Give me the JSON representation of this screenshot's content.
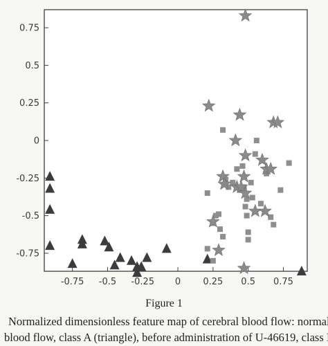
{
  "figure": {
    "title": "Figure 1",
    "caption_line1": "Normalized dimensionless feature map of cerebral blood flow: normal",
    "caption_line2": "blood flow, class A (triangle), before administration of U-46619, class I"
  },
  "chart_data": {
    "type": "scatter",
    "title": "",
    "xlabel": "",
    "ylabel": "",
    "xlim": [
      -0.95,
      0.92
    ],
    "ylim": [
      -0.87,
      0.87
    ],
    "x_ticks": [
      "-0.75",
      "-0.5",
      "-0.25",
      "0",
      "0.25",
      "0.5",
      "0.75"
    ],
    "x_tick_values": [
      -0.75,
      -0.5,
      -0.25,
      0,
      0.25,
      0.5,
      0.75
    ],
    "y_ticks": [
      "0.75",
      "0.5",
      "0.25",
      "0",
      "-0.25",
      "-0.5",
      "-0.75"
    ],
    "y_tick_values": [
      0.75,
      0.5,
      0.25,
      0,
      -0.25,
      -0.5,
      -0.75
    ],
    "grid": false,
    "legend": "none",
    "series": [
      {
        "marker": "triangle",
        "color": "#3c3c3c",
        "points": [
          [
            -0.91,
            -0.24
          ],
          [
            -0.91,
            -0.32
          ],
          [
            -0.91,
            -0.46
          ],
          [
            -0.91,
            -0.7
          ],
          [
            -0.75,
            -0.82
          ],
          [
            -0.68,
            -0.66
          ],
          [
            -0.68,
            -0.69
          ],
          [
            -0.52,
            -0.67
          ],
          [
            -0.49,
            -0.71
          ],
          [
            -0.45,
            -0.83
          ],
          [
            -0.41,
            -0.78
          ],
          [
            -0.33,
            -0.8
          ],
          [
            -0.29,
            -0.84
          ],
          [
            -0.29,
            -0.88
          ],
          [
            -0.26,
            -0.84
          ],
          [
            -0.22,
            -0.78
          ],
          [
            -0.08,
            -0.72
          ],
          [
            0.21,
            -0.79
          ],
          [
            0.88,
            -0.87
          ]
        ]
      },
      {
        "marker": "square",
        "color": "#8e8e8e",
        "points": [
          [
            0.21,
            -0.35
          ],
          [
            0.21,
            -0.72
          ],
          [
            0.25,
            -0.55
          ],
          [
            0.25,
            -0.8
          ],
          [
            0.27,
            -0.5
          ],
          [
            0.29,
            -0.49
          ],
          [
            0.3,
            -0.59
          ],
          [
            0.32,
            -0.64
          ],
          [
            0.32,
            0.07
          ],
          [
            0.34,
            -0.26
          ],
          [
            0.36,
            -0.31
          ],
          [
            0.39,
            -0.28
          ],
          [
            0.42,
            -0.19
          ],
          [
            0.44,
            -0.33
          ],
          [
            0.46,
            -0.17
          ],
          [
            0.47,
            -0.31
          ],
          [
            0.48,
            -0.44
          ],
          [
            0.49,
            -0.39
          ],
          [
            0.49,
            -0.5
          ],
          [
            0.5,
            -0.61
          ],
          [
            0.5,
            -0.66
          ],
          [
            0.52,
            -0.28
          ],
          [
            0.53,
            -0.38
          ],
          [
            0.55,
            -0.09
          ],
          [
            0.56,
            0.0
          ],
          [
            0.59,
            -0.42
          ],
          [
            0.63,
            -0.22
          ],
          [
            0.66,
            -0.51
          ],
          [
            0.68,
            -0.56
          ],
          [
            0.73,
            -0.33
          ],
          [
            0.79,
            -0.15
          ]
        ]
      },
      {
        "marker": "star",
        "color": "#8a8a8a",
        "points": [
          [
            0.48,
            0.83
          ],
          [
            0.22,
            0.23
          ],
          [
            0.44,
            0.17
          ],
          [
            0.68,
            0.12
          ],
          [
            0.71,
            0.12
          ],
          [
            0.41,
            0.0
          ],
          [
            0.48,
            -0.1
          ],
          [
            0.6,
            -0.13
          ],
          [
            0.63,
            -0.19
          ],
          [
            0.66,
            -0.19
          ],
          [
            0.32,
            -0.24
          ],
          [
            0.33,
            -0.29
          ],
          [
            0.47,
            -0.24
          ],
          [
            0.42,
            -0.31
          ],
          [
            0.45,
            -0.31
          ],
          [
            0.48,
            -0.35
          ],
          [
            0.55,
            -0.47
          ],
          [
            0.62,
            -0.47
          ],
          [
            0.25,
            -0.54
          ],
          [
            0.29,
            -0.73
          ],
          [
            0.47,
            -0.85
          ]
        ]
      }
    ]
  }
}
